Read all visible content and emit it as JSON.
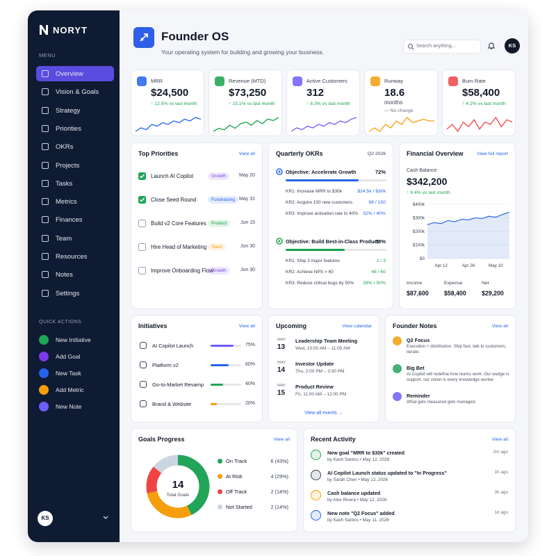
{
  "sidebar": {
    "brand": "NORYT",
    "menu_label": "MENU",
    "menu": [
      {
        "label": "Overview",
        "active": true
      },
      {
        "label": "Vision & Goals"
      },
      {
        "label": "Strategy"
      },
      {
        "label": "Priorities"
      },
      {
        "label": "OKRs"
      },
      {
        "label": "Projects"
      },
      {
        "label": "Tasks"
      },
      {
        "label": "Metrics"
      },
      {
        "label": "Finances"
      },
      {
        "label": "Team"
      },
      {
        "label": "Resources"
      },
      {
        "label": "Notes"
      },
      {
        "label": "Settings"
      }
    ],
    "quick_actions_label": "QUICK ACTIONS",
    "quick_actions": [
      {
        "label": "New Initiative",
        "color": "#22a559"
      },
      {
        "label": "Add Goal",
        "color": "#7c3aed"
      },
      {
        "label": "New Task",
        "color": "#2563eb"
      },
      {
        "label": "Add Metric",
        "color": "#f59e0b"
      },
      {
        "label": "New Note",
        "color": "#6d5dfc"
      }
    ],
    "user": "KS"
  },
  "header": {
    "title": "Founder OS",
    "subtitle": "Your operating system for building and growing your business.",
    "search_placeholder": "Search anything...",
    "user": "KS"
  },
  "kpis": [
    {
      "label": "MRR",
      "value": "$24,500",
      "change": "↑ 12.5% vs last month",
      "change_color": "#16a34a",
      "color": "#2563eb",
      "spark": [
        18,
        20,
        19,
        22,
        21,
        23,
        22,
        24,
        23,
        25,
        24,
        26,
        25
      ]
    },
    {
      "label": "Revenue (MTD)",
      "value": "$73,250",
      "change": "↑ 15.1% vs last month",
      "change_color": "#16a34a",
      "color": "#16a34a",
      "spark": [
        20,
        22,
        21,
        24,
        22,
        25,
        26,
        24,
        27,
        25,
        28,
        27,
        29
      ]
    },
    {
      "label": "Active Customers",
      "value": "312",
      "change": "↑ 8.3% vs last month",
      "change_color": "#16a34a",
      "color": "#6d5dfc",
      "spark": [
        15,
        17,
        16,
        18,
        17,
        19,
        18,
        20,
        19,
        21,
        20,
        22,
        23
      ]
    },
    {
      "label": "Runway",
      "value": "18.6",
      "unit": "months",
      "change": "— No change",
      "change_color": "#6b7280",
      "color": "#f59e0b",
      "spark": [
        18,
        18.2,
        18,
        18.4,
        18.2,
        18.6,
        18.4,
        18.8,
        18.5,
        18.6,
        18.7,
        18.6,
        18.6
      ]
    },
    {
      "label": "Burn Rate",
      "value": "$58,400",
      "change": "↑ 4.2% vs last month",
      "change_color": "#16a34a",
      "color": "#ef4444",
      "spark": [
        20,
        22,
        19,
        23,
        21,
        24,
        20,
        23,
        22,
        25,
        21,
        24,
        23
      ]
    }
  ],
  "priorities": {
    "title": "Top Priorities",
    "link": "View all",
    "items": [
      {
        "title": "Launch AI Copilot",
        "tag": "Growth",
        "tag_color": "#7c3aed",
        "date": "May 20",
        "done": true
      },
      {
        "title": "Close Seed Round",
        "tag": "Fundraising",
        "tag_color": "#2563eb",
        "date": "May 31",
        "done": true
      },
      {
        "title": "Build v2 Core Features",
        "tag": "Product",
        "tag_color": "#16a34a",
        "date": "Jun 15",
        "done": false
      },
      {
        "title": "Hire Head of Marketing",
        "tag": "Team",
        "tag_color": "#f59e0b",
        "date": "Jun 30",
        "done": false
      },
      {
        "title": "Improve Onboarding Flow",
        "tag": "Growth",
        "tag_color": "#7c3aed",
        "date": "Jun 30",
        "done": false
      }
    ]
  },
  "okrs": {
    "title": "Quarterly OKRs",
    "period": "Q2 2026",
    "objectives": [
      {
        "title": "Objective: Accelerate Growth",
        "progress": {
          "value": 72,
          "label": "72%"
        },
        "color": "#2563eb",
        "krs": [
          {
            "name": "KR1: Increase MRR to $30k",
            "progress": "$24.5k / $30k"
          },
          {
            "name": "KR2: Acquire 150 new customers",
            "progress": "98 / 150"
          },
          {
            "name": "KR3: Improve activation rate to 40%",
            "progress": "32% / 40%"
          }
        ]
      },
      {
        "title": "Objective: Build Best-in-Class Product",
        "progress": {
          "value": 58,
          "label": "58%"
        },
        "color": "#16a34a",
        "krs": [
          {
            "name": "KR1: Ship 3 major features",
            "progress": "2 / 3"
          },
          {
            "name": "KR2: Achieve NPS > 60",
            "progress": "48 / 60"
          },
          {
            "name": "KR3: Reduce critical bugs by 50%",
            "progress": "28% / 50%"
          }
        ]
      }
    ]
  },
  "financial": {
    "title": "Financial Overview",
    "link": "View full report",
    "cash_label": "Cash Balance",
    "cash_value": "$342,200",
    "change": "↑ 9.4% vs last month",
    "chart": {
      "type": "area",
      "color": "#3b6fe0",
      "categories": [
        null,
        null,
        "Apr 12",
        null,
        null,
        null,
        "Apr 26",
        null,
        null,
        null,
        "May 10",
        null,
        null
      ],
      "values": [
        250000,
        265000,
        258000,
        280000,
        272000,
        290000,
        285000,
        300000,
        295000,
        312000,
        305000,
        325000,
        342000
      ],
      "ylim": [
        0,
        400000
      ],
      "yticks": [
        {
          "value": 0,
          "label": "$0"
        },
        {
          "value": 100000,
          "label": "$100k"
        },
        {
          "value": 200000,
          "label": "$200k"
        },
        {
          "value": 300000,
          "label": "$300k"
        },
        {
          "value": 400000,
          "label": "$400k"
        }
      ],
      "grid": true
    },
    "summary": [
      {
        "label": "Income",
        "value": "$87,600"
      },
      {
        "label": "Expense",
        "value": "$58,400"
      },
      {
        "label": "Net",
        "value": "$29,200"
      }
    ]
  },
  "initiatives": {
    "title": "Initiatives",
    "link": "View all",
    "items": [
      {
        "name": "AI Copilot Launch",
        "progress": {
          "value": 75,
          "label": "75%"
        },
        "color": "#6d5dfc"
      },
      {
        "name": "Platform v2",
        "progress": {
          "value": 60,
          "label": "60%"
        },
        "color": "#2563eb"
      },
      {
        "name": "Go-to-Market Revamp",
        "progress": {
          "value": 40,
          "label": "40%"
        },
        "color": "#22a559"
      },
      {
        "name": "Brand & Website",
        "progress": {
          "value": 20,
          "label": "20%"
        },
        "color": "#f59e0b"
      }
    ]
  },
  "upcoming": {
    "title": "Upcoming",
    "link": "View calendar",
    "events": [
      {
        "month": "MAY",
        "day": 13,
        "title": "Leadership Team Meeting",
        "time": "Wed, 10:00 AM – 11:00 AM"
      },
      {
        "month": "MAY",
        "day": 14,
        "title": "Investor Update",
        "time": "Thu, 2:00 PM – 3:30 PM"
      },
      {
        "month": "MAY",
        "day": 15,
        "title": "Product Review",
        "time": "Fri, 11:00 AM – 12:00 PM"
      }
    ],
    "footer_link": "View all events →"
  },
  "notes": {
    "title": "Founder Notes",
    "link": "View all",
    "items": [
      {
        "title": "Q2 Focus",
        "text": "Execution + distribution. Ship fast, talk to customers, iterate.",
        "color": "#f59e0b"
      },
      {
        "title": "Big Bet",
        "text": "AI Copilot will redefine how teams work. Our wedge is support, our vision is every knowledge worker.",
        "color": "#22a559"
      },
      {
        "title": "Reminder",
        "text": "What gets measured gets managed.",
        "color": "#6d5dfc"
      }
    ]
  },
  "goals": {
    "title": "Goals Progress",
    "link": "View all",
    "total": 14,
    "total_label": "Total Goals",
    "items": [
      {
        "name": "On Track",
        "value": 6,
        "label": "6 (43%)",
        "color": "#22a559"
      },
      {
        "name": "At Risk",
        "value": 4,
        "label": "4 (29%)",
        "color": "#f59e0b"
      },
      {
        "name": "Off Track",
        "value": 2,
        "label": "2 (14%)",
        "color": "#ef4444"
      },
      {
        "name": "Not Started",
        "value": 2,
        "label": "2 (14%)",
        "color": "#cbd5e1"
      }
    ]
  },
  "activity": {
    "title": "Recent Activity",
    "link": "View all",
    "items": [
      {
        "title": "New goal \"MRR to $30k\" created",
        "meta": "by Kash Santos • May 12, 2026",
        "time": "2m ago",
        "color": "#22a559"
      },
      {
        "title": "AI Copilot Launch status updated to \"In Progress\"",
        "meta": "by Sarah Chen • May 12, 2026",
        "time": "1h ago",
        "color": "#374151"
      },
      {
        "title": "Cash balance updated",
        "meta": "by Alex Rivera • May 12, 2026",
        "time": "3h ago",
        "color": "#f59e0b"
      },
      {
        "title": "New note \"Q2 Focus\" added",
        "meta": "by Kash Santos • May 11, 2026",
        "time": "1d ago",
        "color": "#2563eb"
      }
    ]
  }
}
